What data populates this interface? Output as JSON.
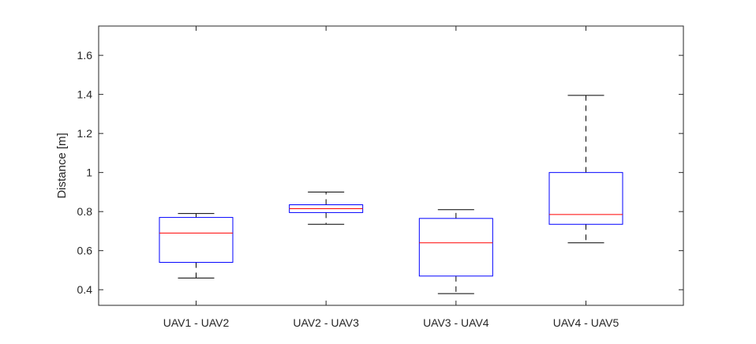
{
  "chart_data": {
    "type": "box",
    "title": "",
    "xlabel": "",
    "ylabel": "Distance [m]",
    "ylim": [
      0.32,
      1.75
    ],
    "yticks": [
      0.4,
      0.6,
      0.8,
      1,
      1.2,
      1.4,
      1.6
    ],
    "ytick_labels": [
      "0.4",
      "0.6",
      "0.8",
      "1",
      "1.2",
      "1.4",
      "1.6"
    ],
    "grid": false,
    "categories": [
      "UAV1 - UAV2",
      "UAV2 - UAV3",
      "UAV3 - UAV4",
      "UAV4 - UAV5"
    ],
    "boxes": [
      {
        "category": "UAV1 - UAV2",
        "whisker_low": 0.46,
        "q1": 0.54,
        "median": 0.69,
        "q3": 0.77,
        "whisker_high": 0.79
      },
      {
        "category": "UAV2 - UAV3",
        "whisker_low": 0.735,
        "q1": 0.795,
        "median": 0.815,
        "q3": 0.835,
        "whisker_high": 0.9
      },
      {
        "category": "UAV3 - UAV4",
        "whisker_low": 0.38,
        "q1": 0.47,
        "median": 0.64,
        "q3": 0.765,
        "whisker_high": 0.81
      },
      {
        "category": "UAV4 - UAV5",
        "whisker_low": 0.64,
        "q1": 0.735,
        "median": 0.785,
        "q3": 1.0,
        "whisker_high": 1.395
      }
    ],
    "colors": {
      "box": "#0000ff",
      "median": "#ff0000",
      "whisker": "#000000",
      "axes": "#262626"
    }
  }
}
